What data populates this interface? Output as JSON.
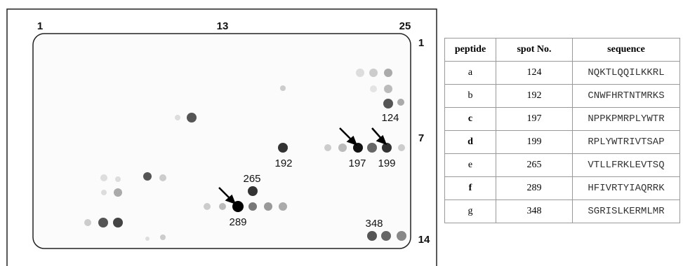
{
  "figure": {
    "column_labels": [
      "1",
      "13",
      "25"
    ],
    "row_labels": [
      "1",
      "7",
      "14"
    ],
    "spot_labels": [
      "124",
      "192",
      "197",
      "199",
      "265",
      "289",
      "348"
    ]
  },
  "table": {
    "header": [
      "peptide",
      "spot No.",
      "sequence"
    ],
    "rows": [
      [
        "a",
        "124",
        "NQKTLQQILKKRL"
      ],
      [
        "b",
        "192",
        "CNWFHRTNTMRKS"
      ],
      [
        "c",
        "197",
        "NPPKPMRPLYWTR"
      ],
      [
        "d",
        "199",
        "RPLYWTRIVTSAP"
      ],
      [
        "e",
        "265",
        "VTLLFRKLEVTSQ"
      ],
      [
        "f",
        "289",
        "HFIVRTYIAQRRK"
      ],
      [
        "g",
        "348",
        "SGRISLKERMLMR"
      ]
    ]
  }
}
